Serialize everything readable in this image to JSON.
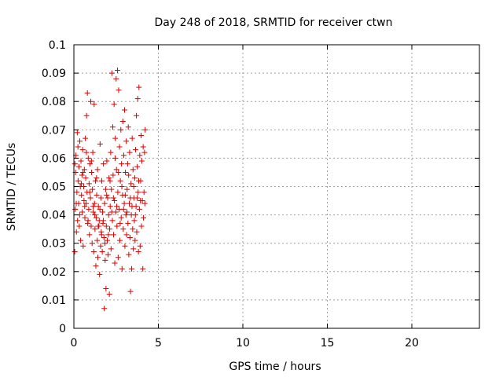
{
  "chart_data": {
    "type": "scatter",
    "title": "Day 248 of 2018, SRMTID for receiver ctwn",
    "xlabel": "GPS time / hours",
    "ylabel": "SRMTID / TECUs",
    "xlim": [
      0,
      24
    ],
    "ylim": [
      0,
      0.1
    ],
    "xticks": [
      0,
      5,
      10,
      15,
      20
    ],
    "xtick_labels": [
      "0",
      "5",
      "10",
      "15",
      "20"
    ],
    "yticks": [
      0,
      0.01,
      0.02,
      0.03,
      0.04,
      0.05,
      0.06,
      0.07,
      0.08,
      0.09,
      0.1
    ],
    "ytick_labels": [
      "0",
      "0.01",
      "0.02",
      "0.03",
      "0.04",
      "0.05",
      "0.06",
      "0.07",
      "0.08",
      "0.09",
      "0.1"
    ],
    "grid": true,
    "marker": "+",
    "color": "#dd0000",
    "series": [
      {
        "points": [
          [
            0.05,
            0.027
          ],
          [
            0.08,
            0.042
          ],
          [
            0.1,
            0.055
          ],
          [
            0.12,
            0.061
          ],
          [
            0.15,
            0.034
          ],
          [
            0.18,
            0.048
          ],
          [
            0.2,
            0.069
          ],
          [
            0.22,
            0.038
          ],
          [
            0.25,
            0.052
          ],
          [
            0.28,
            0.044
          ],
          [
            0.3,
            0.057
          ],
          [
            0.32,
            0.036
          ],
          [
            0.35,
            0.066
          ],
          [
            0.38,
            0.05
          ],
          [
            0.4,
            0.031
          ],
          [
            0.42,
            0.059
          ],
          [
            0.45,
            0.047
          ],
          [
            0.48,
            0.054
          ],
          [
            0.5,
            0.041
          ],
          [
            0.52,
            0.063
          ],
          [
            0.55,
            0.029
          ],
          [
            0.58,
            0.05
          ],
          [
            0.6,
            0.045
          ],
          [
            0.62,
            0.056
          ],
          [
            0.65,
            0.039
          ],
          [
            0.68,
            0.067
          ],
          [
            0.7,
            0.053
          ],
          [
            0.72,
            0.044
          ],
          [
            0.75,
            0.075
          ],
          [
            0.78,
            0.048
          ],
          [
            0.8,
            0.083
          ],
          [
            0.82,
            0.037
          ],
          [
            0.85,
            0.06
          ],
          [
            0.88,
            0.042
          ],
          [
            0.9,
            0.051
          ],
          [
            0.92,
            0.033
          ],
          [
            0.95,
            0.058
          ],
          [
            0.98,
            0.046
          ],
          [
            1.0,
            0.08
          ],
          [
            1.02,
            0.036
          ],
          [
            1.05,
            0.055
          ],
          [
            1.08,
            0.03
          ],
          [
            1.1,
            0.049
          ],
          [
            1.12,
            0.062
          ],
          [
            1.15,
            0.041
          ],
          [
            1.18,
            0.027
          ],
          [
            1.2,
            0.079
          ],
          [
            1.22,
            0.044
          ],
          [
            1.25,
            0.035
          ],
          [
            1.28,
            0.052
          ],
          [
            1.3,
            0.022
          ],
          [
            1.32,
            0.039
          ],
          [
            1.35,
            0.047
          ],
          [
            1.38,
            0.031
          ],
          [
            1.4,
            0.056
          ],
          [
            1.42,
            0.025
          ],
          [
            1.45,
            0.043
          ],
          [
            1.48,
            0.036
          ],
          [
            1.5,
            0.038
          ],
          [
            1.52,
            0.019
          ],
          [
            1.55,
            0.065
          ],
          [
            1.58,
            0.029
          ],
          [
            1.6,
            0.046
          ],
          [
            1.62,
            0.034
          ],
          [
            1.65,
            0.052
          ],
          [
            1.68,
            0.027
          ],
          [
            1.7,
            0.041
          ],
          [
            1.72,
            0.037
          ],
          [
            1.75,
            0.058
          ],
          [
            1.78,
            0.032
          ],
          [
            1.8,
            0.007
          ],
          [
            1.82,
            0.044
          ],
          [
            1.85,
            0.024
          ],
          [
            1.88,
            0.049
          ],
          [
            1.9,
            0.014
          ],
          [
            1.92,
            0.036
          ],
          [
            1.95,
            0.059
          ],
          [
            1.98,
            0.031
          ],
          [
            2.0,
            0.046
          ],
          [
            2.02,
            0.026
          ],
          [
            2.05,
            0.04
          ],
          [
            2.08,
            0.053
          ],
          [
            2.1,
            0.012
          ],
          [
            2.12,
            0.035
          ],
          [
            2.15,
            0.043
          ],
          [
            2.18,
            0.062
          ],
          [
            2.2,
            0.028
          ],
          [
            2.22,
            0.049
          ],
          [
            2.25,
            0.09
          ],
          [
            2.28,
            0.038
          ],
          [
            2.3,
            0.071
          ],
          [
            2.32,
            0.054
          ],
          [
            2.35,
            0.033
          ],
          [
            2.38,
            0.079
          ],
          [
            2.4,
            0.045
          ],
          [
            2.42,
            0.023
          ],
          [
            2.45,
            0.067
          ],
          [
            2.48,
            0.041
          ],
          [
            2.5,
            0.088
          ],
          [
            2.52,
            0.056
          ],
          [
            2.55,
            0.036
          ],
          [
            2.58,
            0.091
          ],
          [
            2.6,
            0.048
          ],
          [
            2.62,
            0.025
          ],
          [
            2.65,
            0.084
          ],
          [
            2.68,
            0.042
          ],
          [
            2.7,
            0.064
          ],
          [
            2.72,
            0.031
          ],
          [
            2.75,
            0.052
          ],
          [
            2.78,
            0.07
          ],
          [
            2.8,
            0.039
          ],
          [
            2.82,
            0.058
          ],
          [
            2.85,
            0.021
          ],
          [
            2.88,
            0.047
          ],
          [
            2.9,
            0.073
          ],
          [
            2.92,
            0.035
          ],
          [
            2.95,
            0.061
          ],
          [
            2.98,
            0.044
          ],
          [
            3.0,
            0.077
          ],
          [
            3.02,
            0.029
          ],
          [
            3.05,
            0.055
          ],
          [
            3.08,
            0.04
          ],
          [
            3.1,
            0.066
          ],
          [
            3.12,
            0.033
          ],
          [
            3.15,
            0.049
          ],
          [
            3.18,
            0.058
          ],
          [
            3.2,
            0.037
          ],
          [
            3.22,
            0.071
          ],
          [
            3.25,
            0.026
          ],
          [
            3.28,
            0.044
          ],
          [
            3.3,
            0.062
          ],
          [
            3.32,
            0.032
          ],
          [
            3.35,
            0.013
          ],
          [
            3.38,
            0.051
          ],
          [
            3.4,
            0.04
          ],
          [
            3.42,
            0.021
          ],
          [
            3.45,
            0.067
          ],
          [
            3.48,
            0.035
          ],
          [
            3.5,
            0.056
          ],
          [
            3.52,
            0.028
          ],
          [
            3.55,
            0.046
          ],
          [
            3.58,
            0.038
          ],
          [
            3.6,
            0.053
          ],
          [
            3.62,
            0.031
          ],
          [
            3.65,
            0.063
          ],
          [
            3.68,
            0.043
          ],
          [
            3.7,
            0.075
          ],
          [
            3.72,
            0.034
          ],
          [
            3.75,
            0.057
          ],
          [
            3.78,
            0.081
          ],
          [
            3.8,
            0.048
          ],
          [
            3.82,
            0.027
          ],
          [
            3.85,
            0.085
          ],
          [
            3.88,
            0.042
          ],
          [
            3.9,
            0.061
          ],
          [
            3.92,
            0.029
          ],
          [
            3.95,
            0.052
          ],
          [
            3.98,
            0.068
          ],
          [
            4.0,
            0.036
          ],
          [
            4.02,
            0.059
          ],
          [
            4.05,
            0.045
          ],
          [
            4.08,
            0.021
          ],
          [
            4.1,
            0.064
          ],
          [
            4.12,
            0.039
          ],
          [
            4.15,
            0.048
          ],
          [
            4.18,
            0.062
          ],
          [
            4.2,
            0.044
          ],
          [
            4.22,
            0.07
          ],
          [
            0.06,
            0.058
          ],
          [
            0.14,
            0.044
          ],
          [
            0.24,
            0.064
          ],
          [
            0.34,
            0.04
          ],
          [
            0.44,
            0.051
          ],
          [
            0.54,
            0.055
          ],
          [
            0.64,
            0.043
          ],
          [
            0.74,
            0.062
          ],
          [
            0.84,
            0.038
          ],
          [
            0.94,
            0.048
          ],
          [
            1.04,
            0.059
          ],
          [
            1.14,
            0.043
          ],
          [
            1.24,
            0.04
          ],
          [
            1.34,
            0.053
          ],
          [
            1.44,
            0.036
          ],
          [
            1.54,
            0.042
          ],
          [
            1.64,
            0.033
          ],
          [
            1.74,
            0.038
          ],
          [
            1.84,
            0.03
          ],
          [
            1.94,
            0.047
          ],
          [
            2.04,
            0.033
          ],
          [
            2.14,
            0.052
          ],
          [
            2.24,
            0.041
          ],
          [
            2.34,
            0.046
          ],
          [
            2.44,
            0.06
          ],
          [
            2.54,
            0.043
          ],
          [
            2.64,
            0.055
          ],
          [
            2.74,
            0.037
          ],
          [
            2.84,
            0.05
          ],
          [
            2.94,
            0.042
          ],
          [
            3.04,
            0.047
          ],
          [
            3.14,
            0.041
          ],
          [
            3.24,
            0.054
          ],
          [
            3.34,
            0.046
          ],
          [
            3.44,
            0.043
          ],
          [
            3.54,
            0.05
          ],
          [
            3.64,
            0.04
          ],
          [
            3.74,
            0.046
          ],
          [
            3.84,
            0.052
          ],
          [
            3.94,
            0.045
          ]
        ]
      }
    ]
  }
}
